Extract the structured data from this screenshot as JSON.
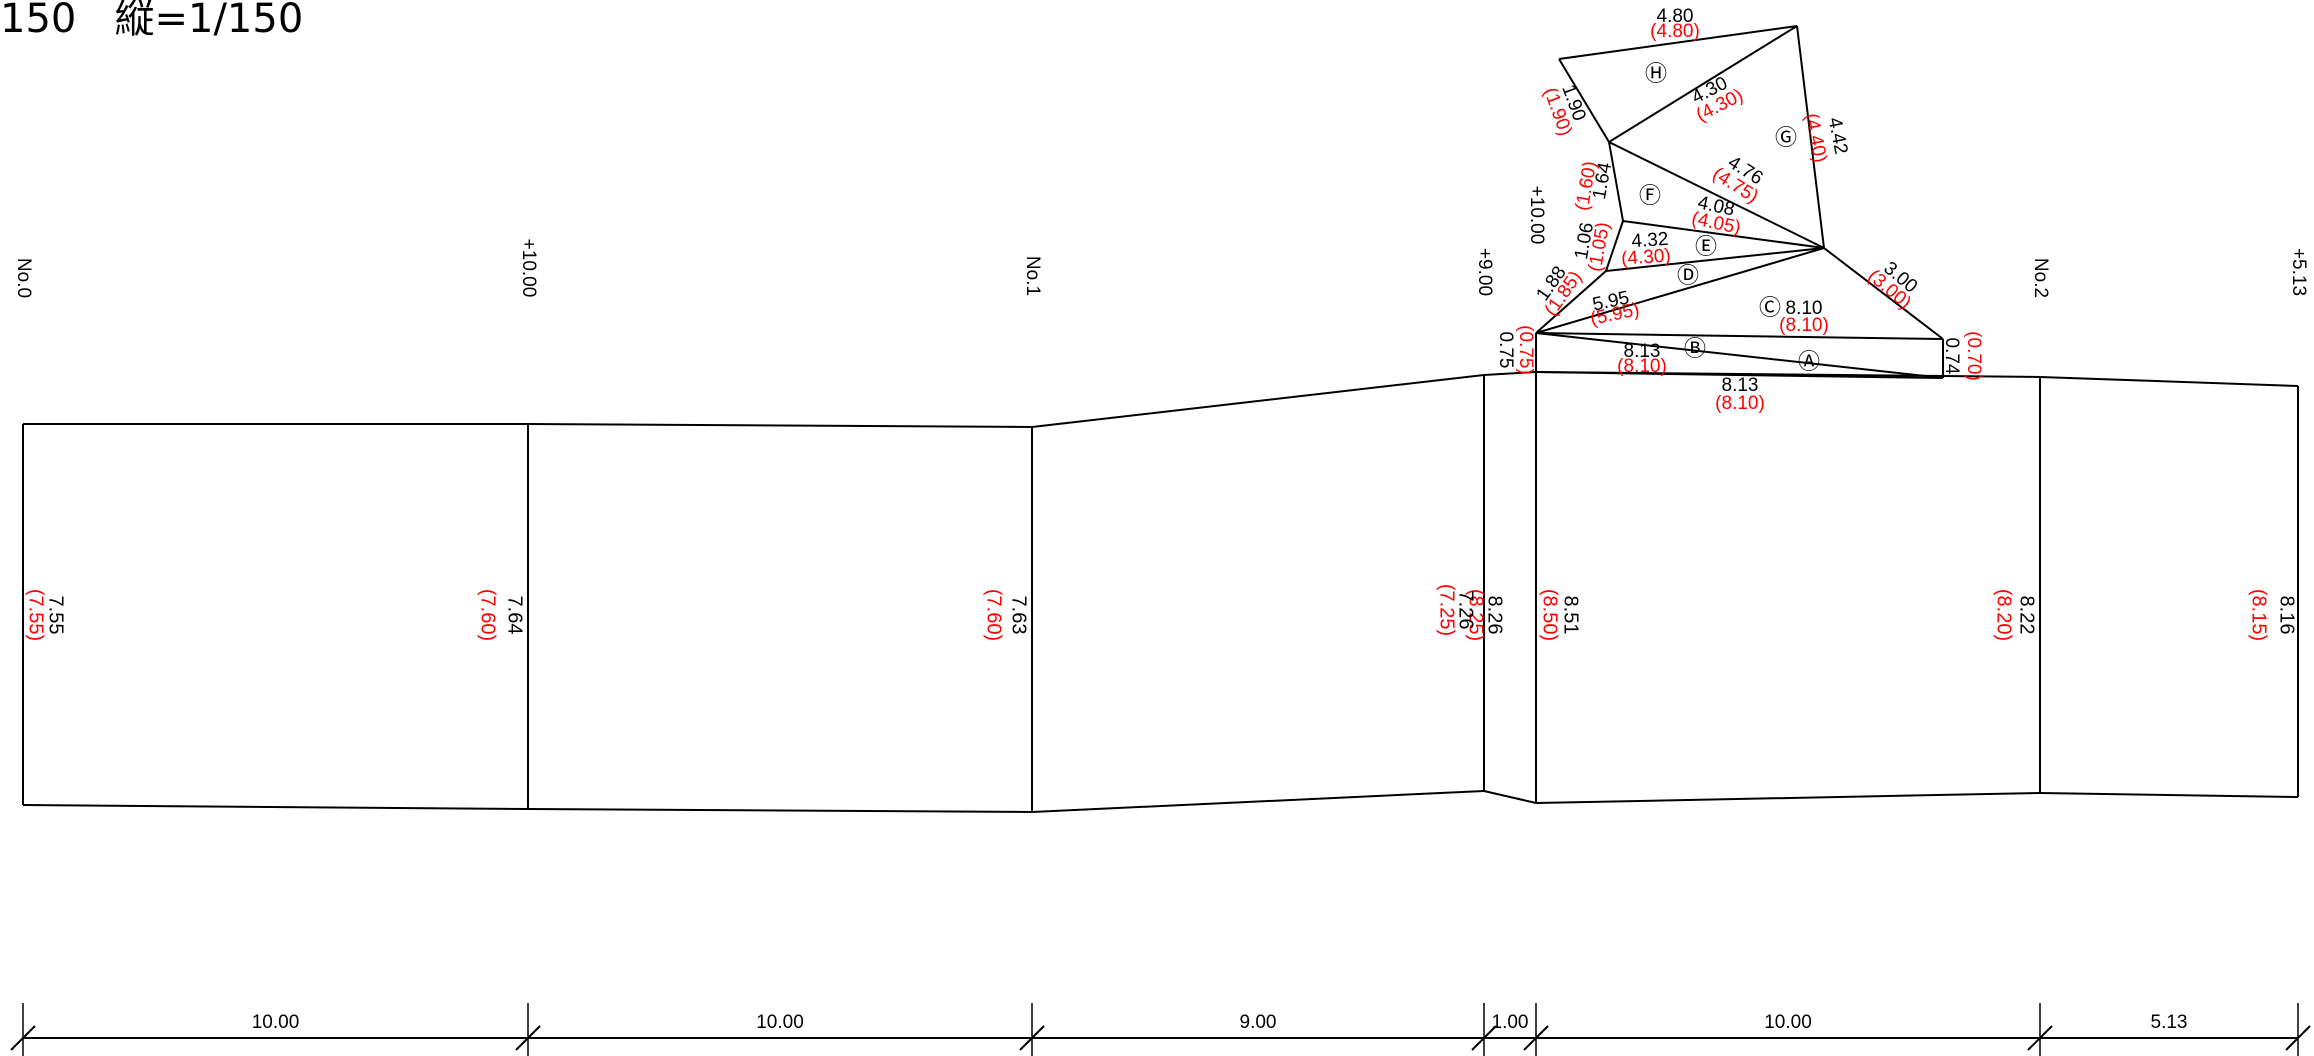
{
  "title": "150   縦=1/150",
  "colors": {
    "line": "#000000",
    "label": "#000000",
    "design_label": "#ff0000"
  },
  "stations": [
    {
      "label": "No.0",
      "measured": "7.55",
      "design": "(7.55)"
    },
    {
      "label": "+10.00",
      "measured": "7.64",
      "design": "(7.60)"
    },
    {
      "label": "No.1",
      "measured": "7.63",
      "design": "(7.60)"
    },
    {
      "label": "+9.00",
      "measured": "8.26",
      "design": "(8.25)",
      "extra_measured": "7.26",
      "extra_design": "(7.25)"
    },
    {
      "label": "+10.00",
      "measured": "8.51",
      "design": "(8.50)"
    },
    {
      "label": "No.2",
      "measured": "8.22",
      "design": "(8.20)"
    },
    {
      "label": "+5.13",
      "measured": "8.16",
      "design": "(8.15)"
    }
  ],
  "intervals": [
    "10.00",
    "10.00",
    "9.00",
    "1.00",
    "10.00",
    "5.13"
  ],
  "triangle_edges": [
    {
      "measured": "8.13",
      "design": "(8.10)"
    },
    {
      "measured": "0.74",
      "design": "(0.70)"
    },
    {
      "measured": "0.75",
      "design": "(0.75)"
    },
    {
      "measured": "8.13",
      "design": "(8.10)"
    },
    {
      "measured": "8.10",
      "design": "(8.10)"
    },
    {
      "measured": "5.95",
      "design": "(5.95)"
    },
    {
      "measured": "3.00",
      "design": "(3.00)"
    },
    {
      "measured": "1.88",
      "design": "(1.85)"
    },
    {
      "measured": "4.32",
      "design": "(4.30)"
    },
    {
      "measured": "1.06",
      "design": "(1.05)"
    },
    {
      "measured": "4.08",
      "design": "(4.05)"
    },
    {
      "measured": "1.64",
      "design": "(1.60)"
    },
    {
      "measured": "4.76",
      "design": "(4.75)"
    },
    {
      "measured": "1.90",
      "design": "(1.90)"
    },
    {
      "measured": "4.30",
      "design": "(4.30)"
    },
    {
      "measured": "4.80",
      "design": "(4.80)"
    },
    {
      "measured": "4.42",
      "design": "(4.40)"
    }
  ],
  "triangle_marks": [
    "Ⓐ",
    "Ⓑ",
    "Ⓒ",
    "Ⓓ",
    "Ⓔ",
    "Ⓕ",
    "Ⓖ",
    "Ⓗ"
  ]
}
